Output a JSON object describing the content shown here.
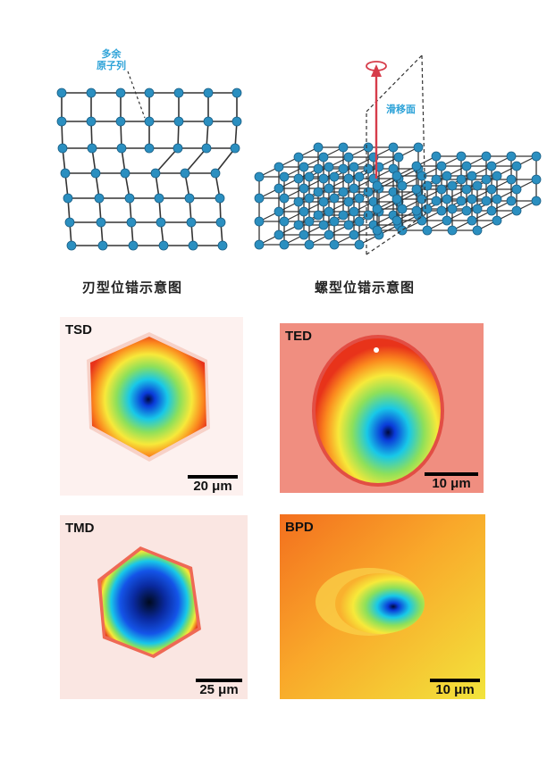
{
  "diagrams": {
    "edge": {
      "caption": "刃型位错示意图",
      "annotation_line1": "多余",
      "annotation_line2": "原子列"
    },
    "screw": {
      "caption": "螺型位错示意图",
      "annotation": "滑移面"
    }
  },
  "images": [
    {
      "id": "tsd",
      "label": "TSD",
      "scale": "20 μm",
      "shape": "hexagon"
    },
    {
      "id": "ted",
      "label": "TED",
      "scale": "10 μm",
      "shape": "ellipse"
    },
    {
      "id": "tmd",
      "label": "TMD",
      "scale": "25 μm",
      "shape": "hexagon-dark"
    },
    {
      "id": "bpd",
      "label": "BPD",
      "scale": "10 μm",
      "shape": "small-ellipse"
    }
  ],
  "colors": {
    "atom": "#2b8fc0",
    "atom_stroke": "#1a5f85",
    "bond": "#333333",
    "annotation": "#2ea3d8",
    "arrow": "#d63c4a"
  }
}
